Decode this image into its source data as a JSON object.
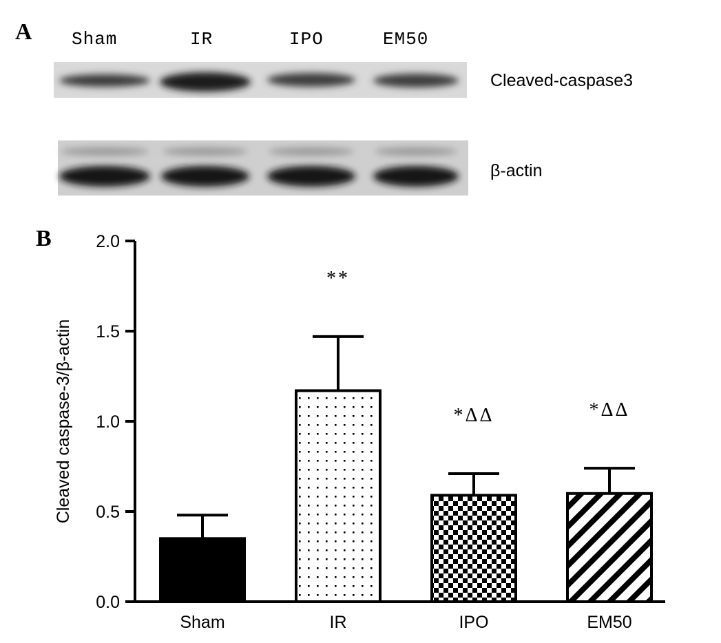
{
  "panel_a": {
    "letter": "A",
    "lanes": [
      "Sham",
      "IR",
      "IPO",
      "EM50"
    ],
    "proteins": [
      "Cleaved-caspase3",
      "β-actin"
    ]
  },
  "panel_b": {
    "letter": "B"
  },
  "chart_data": {
    "type": "bar",
    "categories": [
      "Sham",
      "IR",
      "IPO",
      "EM50"
    ],
    "values": [
      0.35,
      1.17,
      0.59,
      0.6
    ],
    "errors": [
      0.13,
      0.3,
      0.12,
      0.14
    ],
    "annotations": [
      "",
      "**",
      "*ΔΔ",
      "*ΔΔ"
    ],
    "fills": [
      "solid",
      "dots",
      "checker",
      "diagonal"
    ],
    "ylabel": "Cleaved caspase-3/β-actin",
    "ylim": [
      0,
      2.0
    ],
    "yticks": [
      "0.0",
      "0.5",
      "1.0",
      "1.5",
      "2.0"
    ],
    "ytick_values": [
      0,
      0.5,
      1.0,
      1.5,
      2.0
    ],
    "grid": false
  }
}
